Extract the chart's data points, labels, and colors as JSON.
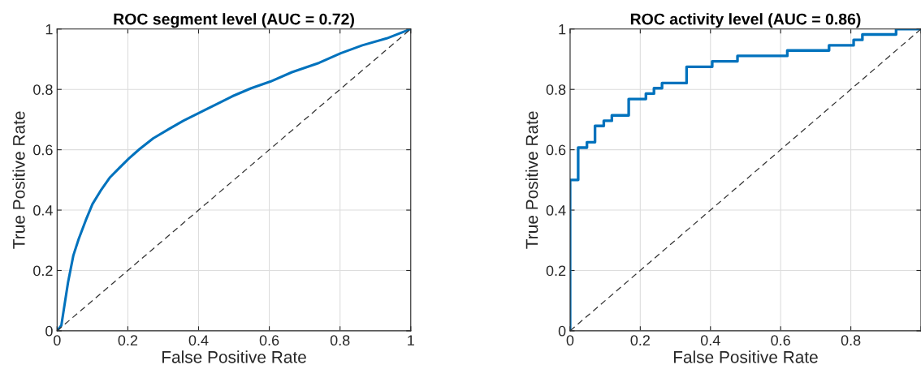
{
  "chart_data": [
    {
      "type": "line",
      "title": "ROC segment level (AUC = 0.72)",
      "xlabel": "False Positive Rate",
      "ylabel": "True Positive Rate",
      "xlim": [
        0,
        1
      ],
      "ylim": [
        0,
        1
      ],
      "xticks": [
        0,
        0.2,
        0.4,
        0.6,
        0.8,
        1
      ],
      "yticks": [
        0,
        0.2,
        0.4,
        0.6,
        0.8,
        1
      ],
      "grid": true,
      "series": [
        {
          "color": "#0072bd",
          "x": [
            0,
            0.012,
            0.019,
            0.031,
            0.046,
            0.061,
            0.081,
            0.1,
            0.123,
            0.15,
            0.173,
            0.203,
            0.234,
            0.272,
            0.318,
            0.357,
            0.403,
            0.449,
            0.495,
            0.549,
            0.603,
            0.664,
            0.741,
            0.802,
            0.863,
            0.932,
            1
          ],
          "values": [
            0,
            0.018,
            0.071,
            0.161,
            0.25,
            0.304,
            0.366,
            0.42,
            0.464,
            0.509,
            0.536,
            0.571,
            0.603,
            0.638,
            0.67,
            0.696,
            0.723,
            0.75,
            0.777,
            0.804,
            0.826,
            0.857,
            0.888,
            0.92,
            0.946,
            0.969,
            1
          ]
        },
        {
          "color": "#333333",
          "line_style": "dashed",
          "x": [
            0,
            1
          ],
          "values": [
            0,
            1
          ]
        }
      ]
    },
    {
      "type": "step",
      "title": "ROC activity level (AUC = 0.86)",
      "xlabel": "False Positive Rate",
      "ylabel": "True Positive Rate",
      "xlim": [
        0,
        1
      ],
      "ylim": [
        0,
        1
      ],
      "xticks": [
        0,
        0.2,
        0.4,
        0.6,
        0.8,
        {
          "value": 1,
          "label": null
        }
      ],
      "yticks": [
        0,
        0.2,
        0.4,
        0.6,
        0.8,
        1
      ],
      "grid": true,
      "series": [
        {
          "color": "#0072bd",
          "x": [
            0,
            0,
            0.023,
            0.048,
            0.071,
            0.096,
            0.119,
            0.167,
            0.216,
            0.239,
            0.262,
            0.332,
            0.405,
            0.477,
            0.619,
            0.738,
            0.808,
            0.833,
            0.929,
            1
          ],
          "values": [
            0,
            0.5,
            0.607,
            0.625,
            0.679,
            0.696,
            0.714,
            0.768,
            0.786,
            0.804,
            0.821,
            0.875,
            0.893,
            0.911,
            0.929,
            0.946,
            0.964,
            0.982,
            1,
            1
          ]
        },
        {
          "type": "line",
          "color": "#333333",
          "line_style": "dashed",
          "x": [
            0,
            1
          ],
          "values": [
            0,
            1
          ]
        }
      ]
    }
  ]
}
